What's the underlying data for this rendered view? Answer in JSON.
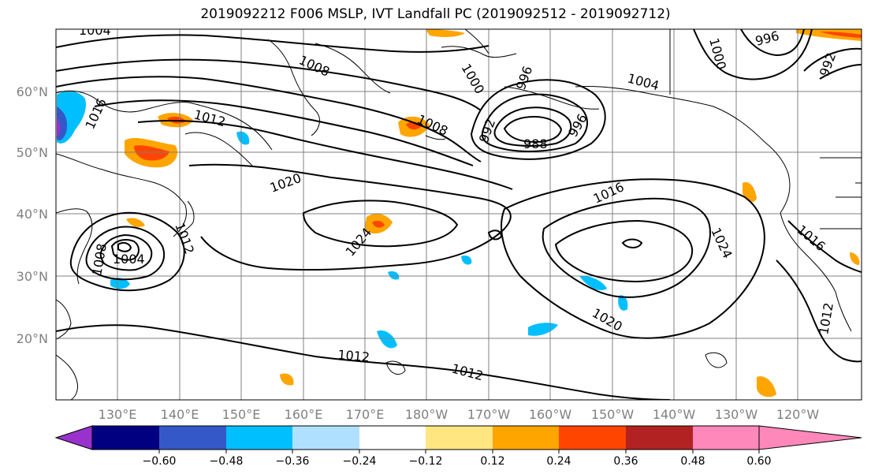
{
  "title": "2019092212 F006 MSLP, IVT Landfall PC (2019092512 - 2019092712)",
  "map": {
    "lat_labels": [
      {
        "text": "60°N",
        "lat": 60
      },
      {
        "text": "50°N",
        "lat": 50
      },
      {
        "text": "40°N",
        "lat": 40
      },
      {
        "text": "30°N",
        "lat": 30
      },
      {
        "text": "20°N",
        "lat": 20
      }
    ],
    "lon_labels": [
      "130°E",
      "140°E",
      "150°E",
      "160°E",
      "170°E",
      "180°W",
      "170°W",
      "160°W",
      "150°W",
      "140°W",
      "130°W",
      "120°W"
    ],
    "contour_labels": [
      "1004",
      "1008",
      "1016",
      "1012",
      "1008",
      "1000",
      "996",
      "992",
      "988",
      "1004",
      "996",
      "1000",
      "996",
      "992",
      "1020",
      "1016",
      "1024",
      "1024",
      "1016",
      "1008",
      "1004",
      "1012",
      "1020",
      "1012",
      "1012",
      "1012"
    ],
    "colors": {
      "contour": "#000000",
      "grid": "#808080",
      "coastline": "#000000"
    }
  },
  "colorbar": {
    "tick_labels": [
      "−0.60",
      "−0.48",
      "−0.36",
      "−0.24",
      "−0.12",
      "0.12",
      "0.24",
      "0.36",
      "0.48",
      "0.60"
    ],
    "colors": [
      "#9932cc",
      "#000080",
      "#3558c8",
      "#00bfff",
      "#b0e0ff",
      "#ffffff",
      "#ffe680",
      "#ffa500",
      "#ff4500",
      "#b22222",
      "#ff88bb"
    ]
  }
}
